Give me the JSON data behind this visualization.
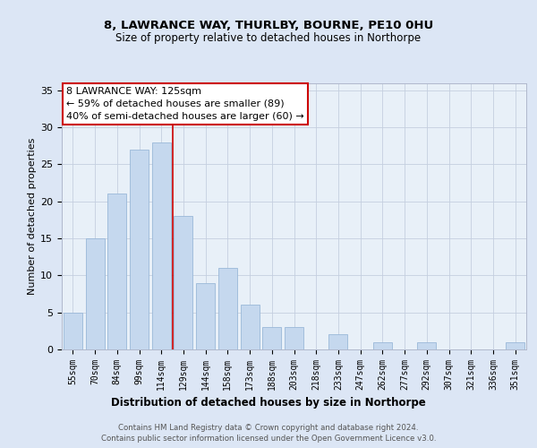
{
  "title1": "8, LAWRANCE WAY, THURLBY, BOURNE, PE10 0HU",
  "title2": "Size of property relative to detached houses in Northorpe",
  "xlabel": "Distribution of detached houses by size in Northorpe",
  "ylabel": "Number of detached properties",
  "categories": [
    "55sqm",
    "70sqm",
    "84sqm",
    "99sqm",
    "114sqm",
    "129sqm",
    "144sqm",
    "158sqm",
    "173sqm",
    "188sqm",
    "203sqm",
    "218sqm",
    "233sqm",
    "247sqm",
    "262sqm",
    "277sqm",
    "292sqm",
    "307sqm",
    "321sqm",
    "336sqm",
    "351sqm"
  ],
  "values": [
    5,
    15,
    21,
    27,
    28,
    18,
    9,
    11,
    6,
    3,
    3,
    0,
    2,
    0,
    1,
    0,
    1,
    0,
    0,
    0,
    1
  ],
  "bar_color": "#c5d8ee",
  "bar_edge_color": "#9ab8d8",
  "vline_x": 4.5,
  "vline_color": "#cc0000",
  "annotation_text": "8 LAWRANCE WAY: 125sqm\n← 59% of detached houses are smaller (89)\n40% of semi-detached houses are larger (60) →",
  "annotation_box_color": "#cc0000",
  "ylim": [
    0,
    36
  ],
  "yticks": [
    0,
    5,
    10,
    15,
    20,
    25,
    30,
    35
  ],
  "background_color": "#dce6f5",
  "plot_bg_color": "#e8f0f8",
  "grid_color": "#c5cfe0",
  "footer_line1": "Contains HM Land Registry data © Crown copyright and database right 2024.",
  "footer_line2": "Contains public sector information licensed under the Open Government Licence v3.0."
}
